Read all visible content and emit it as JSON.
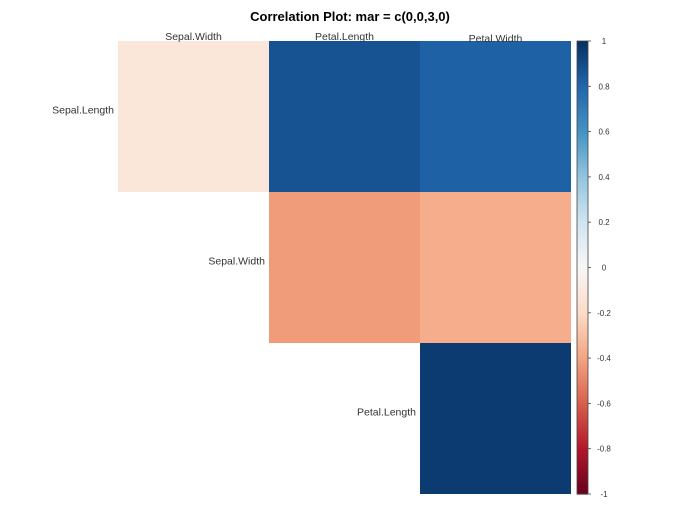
{
  "chart_data": {
    "type": "heatmap",
    "title": "Correlation Plot: mar = c(0,0,3,0)",
    "layout": "upper-triangle",
    "row_labels": [
      "Sepal.Length",
      "Sepal.Width",
      "Petal.Length"
    ],
    "col_labels": [
      "Sepal.Width",
      "Petal.Length",
      "Petal.Width"
    ],
    "cells": [
      {
        "row": "Sepal.Length",
        "col": "Sepal.Width",
        "value": -0.12
      },
      {
        "row": "Sepal.Length",
        "col": "Petal.Length",
        "value": 0.87
      },
      {
        "row": "Sepal.Length",
        "col": "Petal.Width",
        "value": 0.82
      },
      {
        "row": "Sepal.Width",
        "col": "Petal.Length",
        "value": -0.43
      },
      {
        "row": "Sepal.Width",
        "col": "Petal.Width",
        "value": -0.37
      },
      {
        "row": "Petal.Length",
        "col": "Petal.Width",
        "value": 0.96
      }
    ],
    "colorbar": {
      "range": [
        -1,
        1
      ],
      "ticks": [
        "1",
        "0.8",
        "0.6",
        "0.4",
        "0.2",
        "0",
        "-0.2",
        "-0.4",
        "-0.6",
        "-0.8",
        "-1"
      ],
      "palette": [
        "#67001f",
        "#b2182b",
        "#d6604d",
        "#f4a582",
        "#fddbc7",
        "#f7f7f7",
        "#d1e5f0",
        "#92c5de",
        "#4393c3",
        "#2166ac",
        "#053061"
      ]
    },
    "grid": false,
    "legend_position": "right"
  }
}
